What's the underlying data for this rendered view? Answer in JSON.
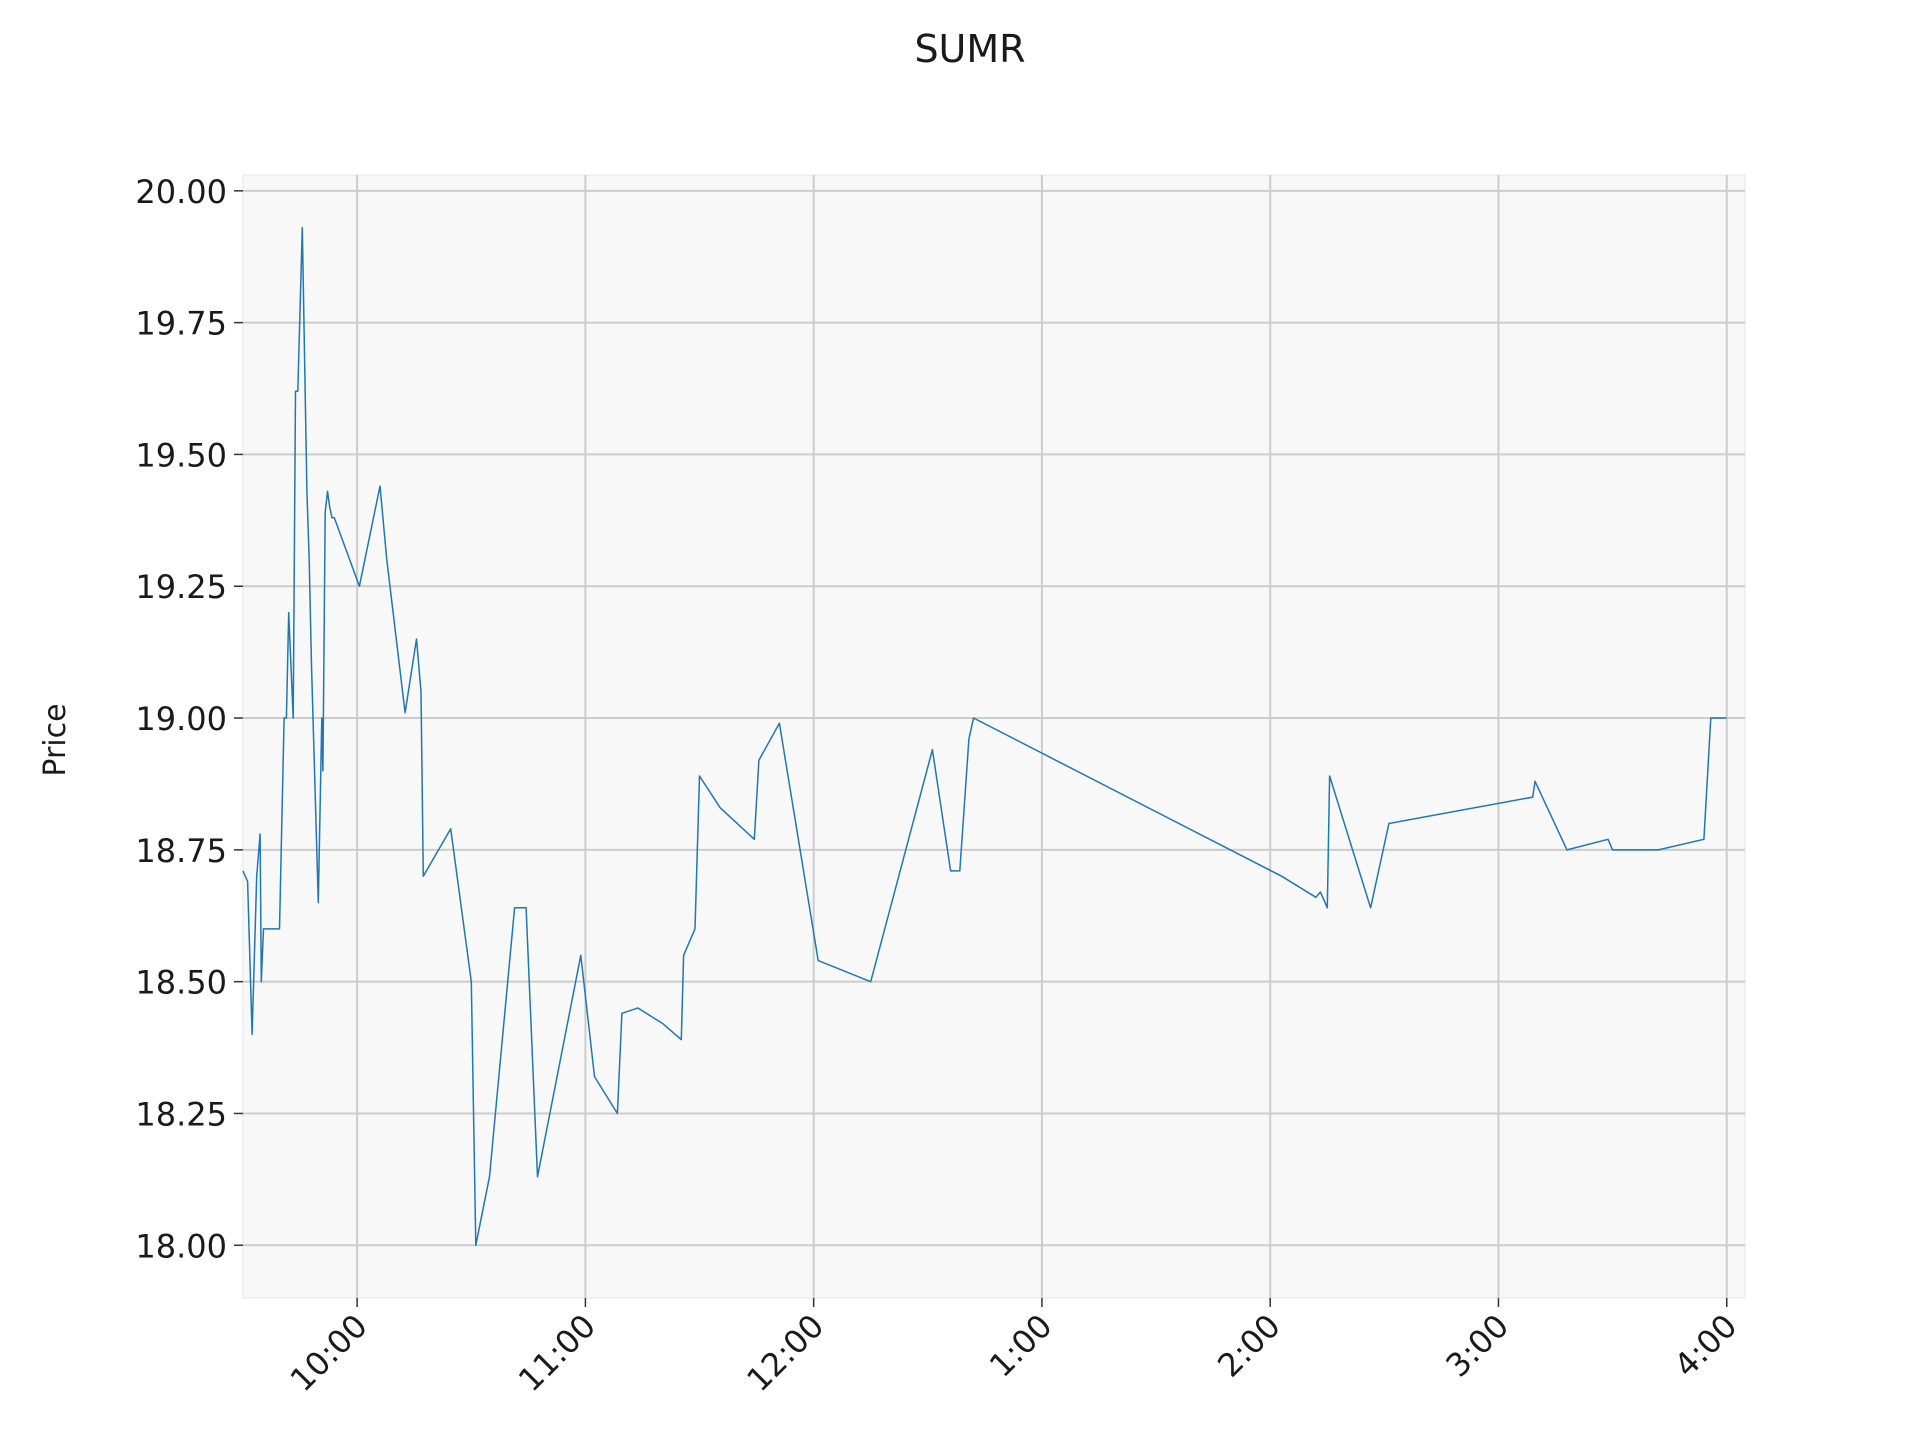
{
  "chart_data": {
    "type": "line",
    "title": "SUMR",
    "xlabel": "",
    "ylabel": "Price",
    "xlim": [
      9.5,
      16.08
    ],
    "ylim": [
      17.9,
      20.03
    ],
    "grid": true,
    "colors": {
      "line": "#1f77b4",
      "plot_bg": "#f8f8f8",
      "grid": "#cccccc"
    },
    "x_ticks": [
      {
        "value": 10,
        "label": "10:00"
      },
      {
        "value": 11,
        "label": "11:00"
      },
      {
        "value": 12,
        "label": "12:00"
      },
      {
        "value": 13,
        "label": "1:00"
      },
      {
        "value": 14,
        "label": "2:00"
      },
      {
        "value": 15,
        "label": "3:00"
      },
      {
        "value": 16,
        "label": "4:00"
      }
    ],
    "y_ticks": [
      {
        "value": 18.0,
        "label": "18.00"
      },
      {
        "value": 18.25,
        "label": "18.25"
      },
      {
        "value": 18.5,
        "label": "18.50"
      },
      {
        "value": 18.75,
        "label": "18.75"
      },
      {
        "value": 19.0,
        "label": "19.00"
      },
      {
        "value": 19.25,
        "label": "19.25"
      },
      {
        "value": 19.5,
        "label": "19.50"
      },
      {
        "value": 19.75,
        "label": "19.75"
      },
      {
        "value": 20.0,
        "label": "20.00"
      }
    ],
    "series": [
      {
        "x": [
          9.5,
          9.52,
          9.54,
          9.56,
          9.575,
          9.58,
          9.59,
          9.66,
          9.68,
          9.69,
          9.7,
          9.72,
          9.73,
          9.74,
          9.76,
          9.78,
          9.79,
          9.8,
          9.83,
          9.845,
          9.85,
          9.86,
          9.87,
          9.88,
          9.89,
          9.9,
          10.01,
          10.1,
          10.13,
          10.21,
          10.26,
          10.28,
          10.29,
          10.41,
          10.5,
          10.52,
          10.58,
          10.69,
          10.71,
          10.74,
          10.79,
          10.98,
          11.04,
          11.14,
          11.16,
          11.23,
          11.34,
          11.42,
          11.43,
          11.48,
          11.5,
          11.59,
          11.74,
          11.76,
          11.85,
          12.02,
          12.25,
          12.52,
          12.6,
          12.64,
          12.68,
          12.7,
          14.05,
          14.2,
          14.22,
          14.25,
          14.26,
          14.44,
          14.52,
          15.15,
          15.16,
          15.3,
          15.48,
          15.5,
          15.7,
          15.9,
          15.93,
          16.0
        ],
        "y": [
          18.71,
          18.69,
          18.4,
          18.7,
          18.78,
          18.5,
          18.6,
          18.6,
          19.0,
          19.0,
          19.2,
          19.0,
          19.62,
          19.62,
          19.93,
          19.43,
          19.3,
          19.1,
          18.65,
          19.0,
          18.9,
          19.39,
          19.43,
          19.4,
          19.38,
          19.38,
          19.25,
          19.44,
          19.3,
          19.01,
          19.15,
          19.05,
          18.7,
          18.79,
          18.5,
          18.0,
          18.13,
          18.64,
          18.64,
          18.64,
          18.13,
          18.55,
          18.32,
          18.25,
          18.44,
          18.45,
          18.42,
          18.39,
          18.55,
          18.6,
          18.89,
          18.83,
          18.77,
          18.92,
          18.99,
          18.54,
          18.5,
          18.94,
          18.71,
          18.71,
          18.96,
          19.0,
          18.7,
          18.66,
          18.67,
          18.64,
          18.89,
          18.64,
          18.8,
          18.85,
          18.88,
          18.75,
          18.77,
          18.75,
          18.75,
          18.77,
          19.0,
          19.0
        ]
      }
    ]
  }
}
